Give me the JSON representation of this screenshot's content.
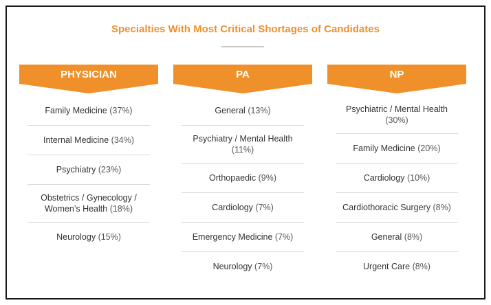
{
  "title": "Specialties With Most Critical Shortages of Candidates",
  "columns": [
    {
      "header": "PHYSICIAN",
      "items": [
        {
          "name": "Family Medicine",
          "pct": "(37%)"
        },
        {
          "name": "Internal Medicine",
          "pct": "(34%)"
        },
        {
          "name": "Psychiatry",
          "pct": "(23%)"
        },
        {
          "name": "Obstetrics / Gynecology / Women’s Health",
          "pct": "(18%)"
        },
        {
          "name": "Neurology",
          "pct": "(15%)"
        }
      ]
    },
    {
      "header": "PA",
      "items": [
        {
          "name": "General",
          "pct": "(13%)"
        },
        {
          "name": "Psychiatry / Mental Health",
          "pct": "(11%)"
        },
        {
          "name": "Orthopaedic",
          "pct": "(9%)"
        },
        {
          "name": "Cardiology",
          "pct": "(7%)"
        },
        {
          "name": "Emergency Medicine",
          "pct": "(7%)"
        },
        {
          "name": "Neurology",
          "pct": "(7%)"
        }
      ]
    },
    {
      "header": "NP",
      "items": [
        {
          "name": "Psychiatric / Mental Health",
          "pct": "(30%)"
        },
        {
          "name": "Family Medicine",
          "pct": "(20%)"
        },
        {
          "name": "Cardiology",
          "pct": "(10%)"
        },
        {
          "name": "Cardiothoracic Surgery",
          "pct": "(8%)"
        },
        {
          "name": "General",
          "pct": "(8%)"
        },
        {
          "name": "Urgent Care",
          "pct": "(8%)"
        }
      ]
    }
  ],
  "colors": {
    "accent": "#f0902a",
    "divider": "#d9d9d9",
    "text": "#333333"
  }
}
